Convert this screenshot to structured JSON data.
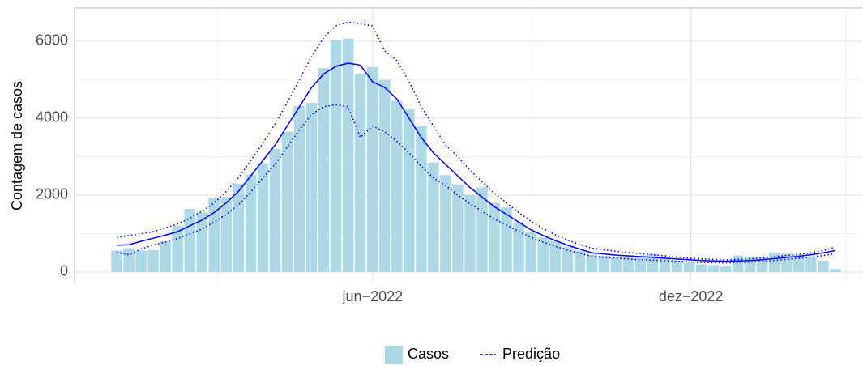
{
  "chart_data": {
    "type": "bar_line",
    "y_label": "Contagem de casos",
    "x": [
      1,
      2,
      3,
      4,
      5,
      6,
      7,
      8,
      9,
      10,
      11,
      12,
      13,
      14,
      15,
      16,
      17,
      18,
      19,
      20,
      21,
      22,
      23,
      24,
      25,
      26,
      27,
      28,
      29,
      30,
      31,
      32,
      33,
      34,
      35,
      36,
      37,
      38,
      39,
      40,
      41,
      42,
      43,
      44,
      45,
      46,
      47,
      48,
      49,
      50,
      51,
      52,
      53,
      54,
      55,
      56,
      57,
      58,
      59,
      60
    ],
    "xlim": [
      -2.46,
      62.2
    ],
    "xticks": [
      {
        "value": 22.01,
        "label": "jun−2022"
      },
      {
        "value": 48.14,
        "label": "dez−2022"
      }
    ],
    "x_minor_ticks": [
      9.24,
      35.1,
      60.9
    ],
    "ylim": [
      -295,
      6863
    ],
    "yticks": [
      0,
      2000,
      4000,
      6000
    ],
    "grid": true,
    "minor_grid": true,
    "legend": "bottom",
    "series": [
      {
        "name": "Casos",
        "kind": "bar",
        "color": "#add8e6",
        "values": [
          560,
          620,
          560,
          570,
          800,
          1200,
          1640,
          1550,
          1930,
          1950,
          2300,
          2530,
          2830,
          3200,
          3650,
          4320,
          4400,
          5300,
          6030,
          6070,
          5150,
          5330,
          5000,
          4450,
          4250,
          3800,
          2850,
          2520,
          2280,
          2000,
          2200,
          1800,
          1680,
          1300,
          1050,
          900,
          800,
          650,
          550,
          450,
          420,
          400,
          380,
          420,
          470,
          360,
          300,
          250,
          200,
          180,
          150,
          430,
          400,
          380,
          510,
          480,
          450,
          380,
          300,
          80
        ]
      },
      {
        "name": "Predição",
        "kind": "line",
        "color": "#0000ff",
        "values": [
          700,
          710,
          800,
          880,
          960,
          1050,
          1200,
          1350,
          1550,
          1800,
          2100,
          2500,
          2900,
          3300,
          3800,
          4300,
          4800,
          5150,
          5350,
          5430,
          5380,
          4950,
          4800,
          4500,
          4000,
          3500,
          3100,
          2800,
          2500,
          2200,
          1950,
          1700,
          1500,
          1300,
          1100,
          950,
          820,
          700,
          600,
          500,
          470,
          440,
          420,
          400,
          380,
          360,
          340,
          320,
          300,
          290,
          285,
          290,
          300,
          320,
          350,
          380,
          410,
          450,
          500,
          560
        ],
        "upper": [
          900,
          950,
          1000,
          1050,
          1150,
          1250,
          1400,
          1580,
          1800,
          2100,
          2450,
          2900,
          3350,
          3850,
          4400,
          5000,
          5600,
          6100,
          6400,
          6500,
          6450,
          6400,
          5750,
          5500,
          4950,
          4300,
          3800,
          3300,
          3000,
          2650,
          2350,
          2050,
          1800,
          1550,
          1320,
          1130,
          970,
          830,
          720,
          620,
          580,
          540,
          510,
          480,
          450,
          420,
          390,
          360,
          340,
          330,
          320,
          330,
          345,
          370,
          400,
          430,
          460,
          500,
          560,
          650
        ],
        "lower": [
          520,
          450,
          600,
          700,
          780,
          870,
          990,
          1120,
          1300,
          1500,
          1750,
          2080,
          2450,
          2800,
          3250,
          3700,
          4100,
          4300,
          4350,
          4300,
          3500,
          3800,
          3650,
          3400,
          3100,
          2750,
          2450,
          2250,
          2000,
          1780,
          1580,
          1380,
          1220,
          1060,
          900,
          780,
          670,
          570,
          490,
          410,
          380,
          360,
          340,
          320,
          310,
          295,
          280,
          265,
          250,
          245,
          240,
          250,
          260,
          275,
          300,
          330,
          360,
          390,
          430,
          480
        ]
      }
    ]
  }
}
